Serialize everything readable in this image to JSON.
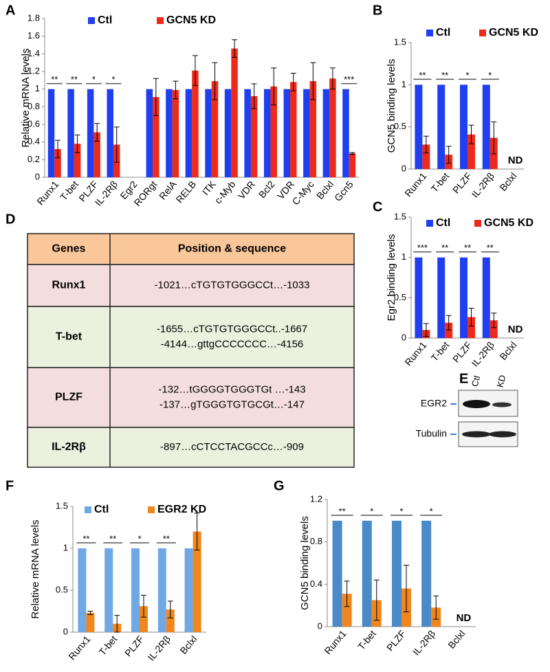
{
  "chart_data": [
    {
      "type": "bar",
      "panel": "A",
      "ylabel": "Relative mRNA levels",
      "legend": true,
      "categories": [
        "Runx1",
        "T-bet",
        "PLZF",
        "IL-2Rβ",
        "Egr2",
        "RORgt",
        "RelA",
        "RELB",
        "ITK",
        "c-Myb",
        "VDR",
        "Bcl2",
        "VDR",
        "C-Myc",
        "Bclxl",
        "Gcn5"
      ],
      "series": [
        {
          "name": "Ctl",
          "color": "#1f3ff0",
          "values": [
            1,
            1,
            1,
            1,
            null,
            1,
            1,
            1,
            1,
            1,
            1,
            1,
            1,
            1,
            1,
            1
          ]
        },
        {
          "name": "GCN5 KD",
          "color": "#ee2a1b",
          "values": [
            0.32,
            0.38,
            0.51,
            0.37,
            null,
            0.91,
            0.99,
            1.21,
            1.09,
            1.46,
            0.92,
            1.03,
            1.08,
            1.09,
            1.12,
            0.27
          ],
          "errors": [
            0.1,
            0.1,
            0.1,
            0.2,
            null,
            0.21,
            0.1,
            0.17,
            0.21,
            0.1,
            0.14,
            0.21,
            0.1,
            0.21,
            0.12,
            0.01
          ]
        }
      ],
      "stars": [
        "**",
        "**",
        "*",
        "*",
        null,
        null,
        null,
        null,
        null,
        null,
        null,
        null,
        null,
        null,
        null,
        "***"
      ],
      "ylim": [
        0,
        1.8
      ],
      "yticks": [
        0,
        0.2,
        0.4,
        0.6,
        0.8,
        1,
        1.2,
        1.4,
        1.6,
        1.8
      ]
    },
    {
      "type": "bar",
      "panel": "B",
      "ylabel": "GCN5 binding levels",
      "legend": true,
      "annotation": "ND",
      "categories": [
        "Runx1",
        "T-bet",
        "PLZF",
        "IL-2Rβ",
        "Bclxl"
      ],
      "series": [
        {
          "name": "Ctl",
          "color": "#1f3ff0",
          "values": [
            1,
            1,
            1,
            1,
            null
          ]
        },
        {
          "name": "GCN5 KD",
          "color": "#ee2a1b",
          "values": [
            0.29,
            0.17,
            0.41,
            0.37,
            null
          ],
          "errors": [
            0.1,
            0.1,
            0.11,
            0.19,
            null
          ]
        }
      ],
      "stars": [
        "**",
        "**",
        "*",
        "*",
        null
      ],
      "ylim": [
        0,
        1.5
      ],
      "yticks": [
        0,
        0.5,
        1,
        1.5
      ]
    },
    {
      "type": "bar",
      "panel": "C",
      "ylabel": "Egr2 binding levels",
      "legend": true,
      "annotation": "ND",
      "categories": [
        "Runx1",
        "T-bet",
        "PLZF",
        "IL-2Rβ",
        "Bclxl"
      ],
      "series": [
        {
          "name": "Ctl",
          "color": "#1f3ff0",
          "values": [
            1,
            1,
            1,
            1,
            null
          ]
        },
        {
          "name": "GCN5 KD",
          "color": "#ee2a1b",
          "values": [
            0.1,
            0.19,
            0.26,
            0.22,
            null
          ],
          "errors": [
            0.08,
            0.09,
            0.11,
            0.09,
            null
          ]
        }
      ],
      "stars": [
        "***",
        "**",
        "**",
        "**",
        null
      ],
      "ylim": [
        0,
        1.5
      ],
      "yticks": [
        0,
        0.5,
        1,
        1.5
      ]
    },
    {
      "type": "bar",
      "panel": "F",
      "ylabel": "Relative mRNA levels",
      "legend": true,
      "categories": [
        "Runx1",
        "T-bet",
        "PLZF",
        "IL-2Rβ",
        "Bclxl"
      ],
      "series": [
        {
          "name": "Ctl",
          "color": "#6fa8e4",
          "values": [
            1,
            1,
            1,
            1,
            1
          ]
        },
        {
          "name": "EGR2 KD",
          "color": "#f0861e",
          "values": [
            0.23,
            0.1,
            0.31,
            0.27,
            1.2
          ],
          "errors": [
            0.02,
            0.1,
            0.13,
            0.1,
            0.22
          ]
        }
      ],
      "stars": [
        "**",
        "**",
        "*",
        "**",
        null
      ],
      "ylim": [
        0,
        1.5
      ],
      "yticks": [
        0,
        0.5,
        1,
        1.5
      ]
    },
    {
      "type": "bar",
      "panel": "G",
      "ylabel": "GCN5 binding levels",
      "legend": false,
      "annotation": "ND",
      "categories": [
        "Runx1",
        "T-bet",
        "PLZF",
        "IL-2Rβ",
        "Bclxl"
      ],
      "series": [
        {
          "name": "Ctl",
          "color": "#4a8ac8",
          "values": [
            1,
            1,
            1,
            1,
            null
          ]
        },
        {
          "name": "KD",
          "color": "#f0861e",
          "values": [
            0.31,
            0.25,
            0.36,
            0.18,
            null
          ],
          "errors": [
            0.12,
            0.19,
            0.22,
            0.11,
            null
          ]
        }
      ],
      "stars": [
        "**",
        "*",
        "*",
        "*",
        null
      ],
      "ylim": [
        0,
        1.2
      ],
      "yticks": [
        0,
        0.4,
        0.8,
        1.2
      ]
    }
  ],
  "table": {
    "panel": "D",
    "header": [
      "Genes",
      "Position & sequence"
    ],
    "rows": [
      {
        "gene": "Runx1",
        "sequences": [
          "-1021…cTGTGTGGGCCt…-1033"
        ]
      },
      {
        "gene": "T-bet",
        "sequences": [
          "-1655…cTGTGTGGGCCt..-1667",
          "-4144…gttgCCCCCCC…-4156"
        ]
      },
      {
        "gene": "PLZF",
        "sequences": [
          "-132…tGGGGTGGGTGt …-143",
          "-137…gTGGGTGTGCGt…-147"
        ]
      },
      {
        "gene": "IL-2Rβ",
        "sequences": [
          "-897…cCTCCTACGCCc…-909"
        ]
      }
    ]
  },
  "blot": {
    "panel": "E",
    "columns": [
      "Ctl",
      "KD"
    ],
    "rows": [
      "EGR2",
      "Tubulin"
    ]
  }
}
